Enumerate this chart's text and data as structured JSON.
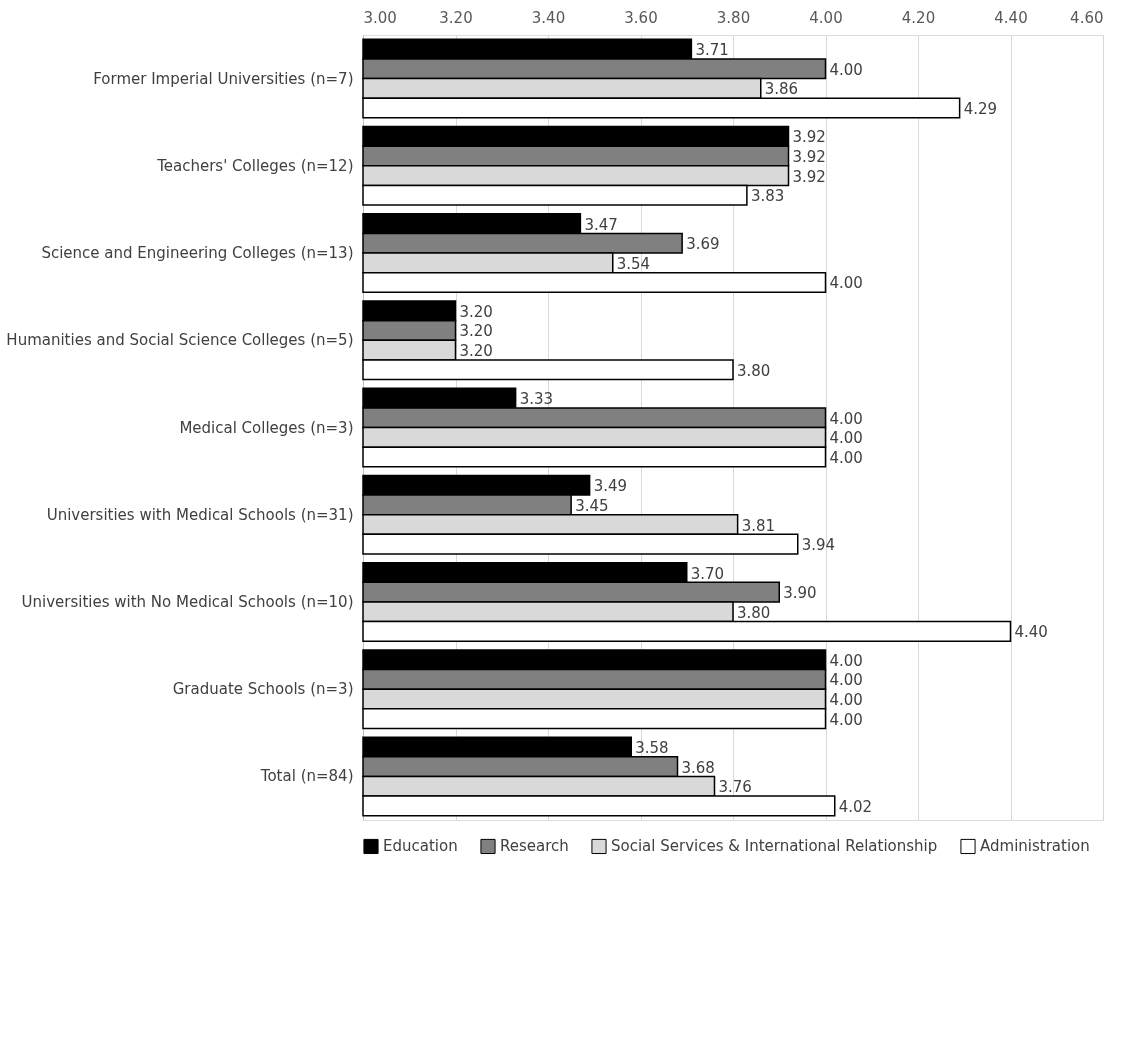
{
  "chart_data": {
    "type": "bar",
    "orientation": "horizontal",
    "categories": [
      "Former Imperial Universities (n=7)",
      "Teachers' Colleges (n=12)",
      "Science and Engineering Colleges (n=13)",
      "Humanities and Social Science Colleges (n=5)",
      "Medical Colleges (n=3)",
      "Universities with Medical Schools (n=31)",
      "Universities with No Medical Schools (n=10)",
      "Graduate Schools (n=3)",
      "Total (n=84)"
    ],
    "series": [
      {
        "name": "Education",
        "color": "#000000",
        "values": [
          3.71,
          3.92,
          3.47,
          3.2,
          3.33,
          3.49,
          3.7,
          4.0,
          3.58
        ],
        "value_labels": [
          "3.71",
          "3.92",
          "3.47",
          "3.20",
          "3.33",
          "3.49",
          "3.70",
          "4.00",
          "3.58"
        ]
      },
      {
        "name": "Research",
        "color": "#808080",
        "values": [
          4.0,
          3.92,
          3.69,
          3.2,
          4.0,
          3.45,
          3.9,
          4.0,
          3.68
        ],
        "value_labels": [
          "4.00",
          "3.92",
          "3.69",
          "3.20",
          "4.00",
          "3.45",
          "3.90",
          "4.00",
          "3.68"
        ]
      },
      {
        "name": "Social Services & International Relationship",
        "color": "#d9d9d9",
        "values": [
          3.86,
          3.92,
          3.54,
          3.2,
          4.0,
          3.81,
          3.8,
          4.0,
          3.76
        ],
        "value_labels": [
          "3.86",
          "3.92",
          "3.54",
          "3.20",
          "4.00",
          "3.81",
          "3.80",
          "4.00",
          "3.76"
        ]
      },
      {
        "name": "Administration",
        "color": "#ffffff",
        "values": [
          4.29,
          3.83,
          4.0,
          3.8,
          4.0,
          3.94,
          4.4,
          4.0,
          4.02
        ],
        "value_labels": [
          "4.29",
          "3.83",
          "4.00",
          "3.80",
          "4.00",
          "3.94",
          "4.40",
          "4.00",
          "4.02"
        ]
      }
    ],
    "xlim": [
      3.0,
      4.6
    ],
    "xticks": [
      {
        "value": 3.0,
        "label": "3.00"
      },
      {
        "value": 3.2,
        "label": "3.20"
      },
      {
        "value": 3.4,
        "label": "3.40"
      },
      {
        "value": 3.6,
        "label": "3.60"
      },
      {
        "value": 3.8,
        "label": "3.80"
      },
      {
        "value": 4.0,
        "label": "4.00"
      },
      {
        "value": 4.2,
        "label": "4.20"
      },
      {
        "value": 4.4,
        "label": "4.40"
      },
      {
        "value": 4.6,
        "label": "4.60"
      }
    ],
    "grid": "x",
    "legend": "bottom"
  }
}
